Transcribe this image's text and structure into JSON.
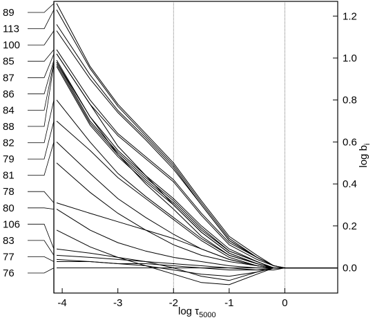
{
  "chart_data": {
    "type": "line",
    "xlabel": "log τ",
    "xlabel_subscript": "5000",
    "ylabel": "log b",
    "ylabel_subscript": "i",
    "xlim": [
      -4.15,
      0.95
    ],
    "ylim": [
      -0.12,
      1.27
    ],
    "x_ticks": [
      "-4",
      "-3",
      "-2",
      "-1",
      "0"
    ],
    "y_ticks": [
      "1.2",
      "1.0",
      "0.8",
      "0.6",
      "0.4",
      "0.2",
      "0.0"
    ],
    "reference_lines_x": [
      -2,
      0
    ],
    "level_labels": [
      "89",
      "113",
      "100",
      "85",
      "87",
      "86",
      "84",
      "88",
      "82",
      "79",
      "81",
      "78",
      "80",
      "106",
      "83",
      "77",
      "76"
    ],
    "series": [
      {
        "x": [
          -4.1,
          -3.5,
          -3.0,
          -2.5,
          -2.0,
          -1.5,
          -1.0,
          -0.5,
          -0.2,
          0.0,
          0.5,
          0.95
        ],
        "values": [
          1.26,
          0.96,
          0.78,
          0.64,
          0.5,
          0.32,
          0.15,
          0.06,
          0.01,
          0.0,
          0.0,
          0.0
        ]
      },
      {
        "x": [
          -4.1,
          -3.5,
          -3.0,
          -2.5,
          -2.0,
          -1.5,
          -1.0,
          -0.5,
          -0.2,
          0.0,
          0.5,
          0.95
        ],
        "values": [
          1.23,
          0.95,
          0.77,
          0.63,
          0.49,
          0.31,
          0.14,
          0.05,
          0.01,
          0.0,
          0.0,
          0.0
        ]
      },
      {
        "x": [
          -4.1,
          -3.5,
          -3.0,
          -2.5,
          -2.0,
          -1.5,
          -1.0,
          -0.5,
          -0.2,
          0.0,
          0.5,
          0.95
        ],
        "values": [
          1.16,
          0.92,
          0.75,
          0.62,
          0.48,
          0.3,
          0.13,
          0.05,
          0.01,
          0.0,
          0.0,
          0.0
        ]
      },
      {
        "x": [
          -4.1,
          -3.5,
          -3.0,
          -2.5,
          -2.0,
          -1.5,
          -1.0,
          -0.5,
          -0.2,
          0.0,
          0.5,
          0.95
        ],
        "values": [
          1.13,
          0.9,
          0.74,
          0.61,
          0.47,
          0.3,
          0.13,
          0.05,
          0.01,
          0.0,
          0.0,
          0.0
        ]
      },
      {
        "x": [
          -4.1,
          -3.5,
          -3.0,
          -2.5,
          -2.0,
          -1.5,
          -1.0,
          -0.5,
          -0.2,
          0.0,
          0.5,
          0.95
        ],
        "values": [
          1.04,
          0.8,
          0.64,
          0.53,
          0.42,
          0.26,
          0.12,
          0.05,
          0.01,
          0.0,
          0.0,
          0.0
        ]
      },
      {
        "x": [
          -4.1,
          -3.5,
          -3.0,
          -2.5,
          -2.0,
          -1.5,
          -1.0,
          -0.5,
          -0.2,
          0.0,
          0.5,
          0.95
        ],
        "values": [
          1.02,
          0.78,
          0.63,
          0.52,
          0.41,
          0.25,
          0.11,
          0.04,
          0.01,
          0.0,
          0.0,
          0.0
        ]
      },
      {
        "x": [
          -4.1,
          -3.5,
          -3.0,
          -2.5,
          -2.0,
          -1.5,
          -1.0,
          -0.5,
          -0.2,
          0.0,
          0.5,
          0.95
        ],
        "values": [
          0.99,
          0.72,
          0.56,
          0.44,
          0.33,
          0.2,
          0.09,
          0.03,
          0.0,
          0.0,
          0.0,
          0.0
        ]
      },
      {
        "x": [
          -4.1,
          -3.5,
          -3.0,
          -2.5,
          -2.0,
          -1.5,
          -1.0,
          -0.5,
          -0.2,
          0.0,
          0.5,
          0.95
        ],
        "values": [
          0.98,
          0.7,
          0.55,
          0.43,
          0.32,
          0.19,
          0.08,
          0.03,
          0.0,
          0.0,
          0.0,
          0.0
        ]
      },
      {
        "x": [
          -4.1,
          -3.5,
          -3.0,
          -2.5,
          -2.0,
          -1.5,
          -1.0,
          -0.5,
          -0.2,
          0.0,
          0.5,
          0.95
        ],
        "values": [
          0.97,
          0.69,
          0.54,
          0.42,
          0.31,
          0.18,
          0.08,
          0.03,
          0.0,
          0.0,
          0.0,
          0.0
        ]
      },
      {
        "x": [
          -4.1,
          -3.5,
          -3.0,
          -2.5,
          -2.0,
          -1.5,
          -1.0,
          -0.5,
          -0.2,
          0.0,
          0.5,
          0.95
        ],
        "values": [
          0.96,
          0.68,
          0.53,
          0.41,
          0.3,
          0.17,
          0.07,
          0.02,
          0.0,
          0.0,
          0.0,
          0.0
        ]
      },
      {
        "x": [
          -4.1,
          -3.5,
          -3.0,
          -2.5,
          -2.0,
          -1.5,
          -1.0,
          -0.5,
          -0.2,
          0.0,
          0.5,
          0.95
        ],
        "values": [
          1.02,
          0.78,
          0.58,
          0.44,
          0.3,
          0.17,
          0.07,
          0.02,
          0.0,
          0.0,
          0.0,
          0.0
        ]
      },
      {
        "x": [
          -4.1,
          -3.5,
          -3.0,
          -2.5,
          -2.0,
          -1.5,
          -1.0,
          -0.5,
          -0.2,
          0.0,
          0.5,
          0.95
        ],
        "values": [
          0.98,
          0.72,
          0.54,
          0.4,
          0.28,
          0.15,
          0.06,
          0.02,
          0.0,
          0.0,
          0.0,
          0.0
        ]
      },
      {
        "x": [
          -4.1,
          -3.5,
          -3.0,
          -2.5,
          -2.0,
          -1.5,
          -1.0,
          -0.5,
          -0.2,
          0.0,
          0.5,
          0.95
        ],
        "values": [
          0.8,
          0.6,
          0.45,
          0.34,
          0.24,
          0.14,
          0.06,
          0.02,
          0.0,
          0.0,
          0.0,
          0.0
        ]
      },
      {
        "x": [
          -4.1,
          -3.5,
          -3.0,
          -2.5,
          -2.0,
          -1.5,
          -1.0,
          -0.5,
          -0.2,
          0.0,
          0.5,
          0.95
        ],
        "values": [
          0.7,
          0.56,
          0.43,
          0.33,
          0.23,
          0.13,
          0.05,
          0.01,
          0.0,
          0.0,
          0.0,
          0.0
        ]
      },
      {
        "x": [
          -4.1,
          -3.5,
          -3.0,
          -2.5,
          -2.0,
          -1.5,
          -1.0,
          -0.5,
          -0.2,
          0.0,
          0.5,
          0.95
        ],
        "values": [
          0.6,
          0.45,
          0.33,
          0.24,
          0.16,
          0.09,
          0.04,
          0.01,
          0.0,
          0.0,
          0.0,
          0.0
        ]
      },
      {
        "x": [
          -4.1,
          -3.5,
          -3.0,
          -2.5,
          -2.0,
          -1.5,
          -1.0,
          -0.5,
          -0.2,
          0.0,
          0.5,
          0.95
        ],
        "values": [
          0.5,
          0.36,
          0.26,
          0.18,
          0.11,
          0.06,
          0.03,
          0.01,
          0.0,
          0.0,
          0.0,
          0.0
        ]
      },
      {
        "x": [
          -4.1,
          -3.5,
          -3.0,
          -2.5,
          -2.0,
          -1.5,
          -1.0,
          -0.5,
          -0.2,
          0.0,
          0.5,
          0.95
        ],
        "values": [
          0.31,
          0.26,
          0.22,
          0.18,
          0.14,
          0.09,
          0.04,
          0.01,
          0.0,
          0.0,
          0.0,
          0.0
        ]
      },
      {
        "x": [
          -4.1,
          -3.5,
          -3.0,
          -2.5,
          -2.0,
          -1.5,
          -1.0,
          -0.5,
          -0.2,
          0.0,
          0.5,
          0.95
        ],
        "values": [
          0.28,
          0.18,
          0.12,
          0.08,
          0.05,
          0.03,
          0.01,
          0.0,
          0.0,
          0.0,
          0.0,
          0.0
        ]
      },
      {
        "x": [
          -4.1,
          -3.5,
          -3.0,
          -2.5,
          -2.0,
          -1.5,
          -1.0,
          -0.5,
          -0.2,
          0.0,
          0.5,
          0.95
        ],
        "values": [
          0.18,
          0.1,
          0.05,
          0.01,
          -0.03,
          -0.07,
          -0.08,
          -0.03,
          0.0,
          0.0,
          0.0,
          0.0
        ]
      },
      {
        "x": [
          -4.1,
          -3.5,
          -3.0,
          -2.5,
          -2.0,
          -1.5,
          -1.0,
          -0.5,
          -0.2,
          0.0,
          0.5,
          0.95
        ],
        "values": [
          0.09,
          0.07,
          0.05,
          0.03,
          0.0,
          -0.04,
          -0.06,
          -0.02,
          0.0,
          0.0,
          0.0,
          0.0
        ]
      },
      {
        "x": [
          -4.1,
          -3.5,
          -3.0,
          -2.5,
          -2.0,
          -1.5,
          -1.0,
          -0.5,
          -0.2,
          0.0,
          0.5,
          0.95
        ],
        "values": [
          0.06,
          0.05,
          0.04,
          0.03,
          0.02,
          0.01,
          0.0,
          -0.01,
          -0.01,
          0.0,
          0.0,
          0.0
        ]
      },
      {
        "x": [
          -4.1,
          -3.5,
          -3.0,
          -2.5,
          -2.0,
          -1.5,
          -1.0,
          -0.5,
          -0.2,
          0.0,
          0.5,
          0.95
        ],
        "values": [
          0.04,
          0.03,
          0.02,
          0.01,
          -0.01,
          -0.03,
          -0.04,
          -0.02,
          0.0,
          0.0,
          0.0,
          0.0
        ]
      },
      {
        "x": [
          -4.1,
          -3.5,
          -3.0,
          -2.5,
          -2.0,
          -1.5,
          -1.0,
          -0.5,
          -0.2,
          0.0,
          0.5,
          0.95
        ],
        "values": [
          0.03,
          0.03,
          0.02,
          0.02,
          0.01,
          0.0,
          -0.01,
          -0.01,
          0.0,
          0.0,
          0.0,
          0.0
        ]
      },
      {
        "x": [
          -4.1,
          -3.5,
          -3.0,
          -2.5,
          -2.0,
          -1.5,
          -1.0,
          -0.5,
          -0.2,
          0.0,
          0.5,
          0.95
        ],
        "values": [
          0.0,
          0.0,
          0.0,
          0.0,
          0.0,
          0.0,
          0.0,
          0.0,
          0.0,
          0.0,
          0.0,
          0.0
        ]
      }
    ]
  }
}
